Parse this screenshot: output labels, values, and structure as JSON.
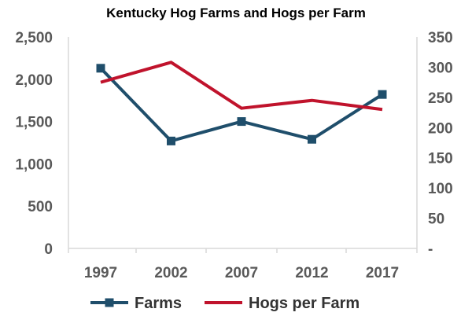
{
  "chart_data": {
    "type": "line",
    "title": "Kentucky Hog Farms and Hogs per Farm",
    "categories": [
      "1997",
      "2002",
      "2007",
      "2012",
      "2017"
    ],
    "series": [
      {
        "name": "Farms",
        "axis": "left",
        "color": "#1f4e6b",
        "marker": "square",
        "values": [
          2130,
          1270,
          1500,
          1290,
          1820
        ]
      },
      {
        "name": "Hogs per Farm",
        "axis": "right",
        "color": "#c0132c",
        "marker": "none",
        "values": [
          275,
          308,
          232,
          245,
          230
        ]
      }
    ],
    "y_left": {
      "ylim": [
        0,
        2500
      ],
      "ticks": [
        0,
        500,
        1000,
        1500,
        2000,
        2500
      ],
      "tick_labels": [
        "0",
        "500",
        "1,000",
        "1,500",
        "2,000",
        "2,500"
      ]
    },
    "y_right": {
      "ylim": [
        0,
        350
      ],
      "ticks": [
        0,
        50,
        100,
        150,
        200,
        250,
        300,
        350
      ],
      "tick_labels": [
        "-",
        "50",
        "100",
        "150",
        "200",
        "250",
        "300",
        "350"
      ]
    },
    "grid": false,
    "legend": "bottom"
  }
}
